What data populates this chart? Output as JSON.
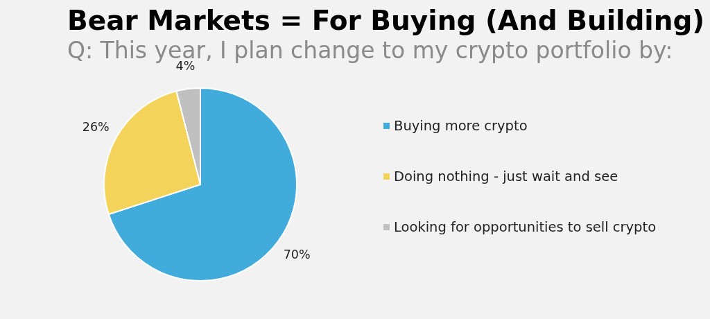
{
  "chart_data": {
    "type": "pie",
    "title": "Bear Markets = For Buying (And Building)",
    "subtitle": "Q: This year, I plan change to my crypto portfolio by:",
    "categories": [
      "Buying more crypto",
      "Doing nothing - just wait and see",
      "Looking for opportunities to sell crypto"
    ],
    "values": [
      70,
      26,
      4
    ],
    "colors": [
      "#41acdb",
      "#f4d35a",
      "#c0c0c0"
    ],
    "value_labels": [
      "70%",
      "26%",
      "4%"
    ],
    "legend": "right"
  }
}
